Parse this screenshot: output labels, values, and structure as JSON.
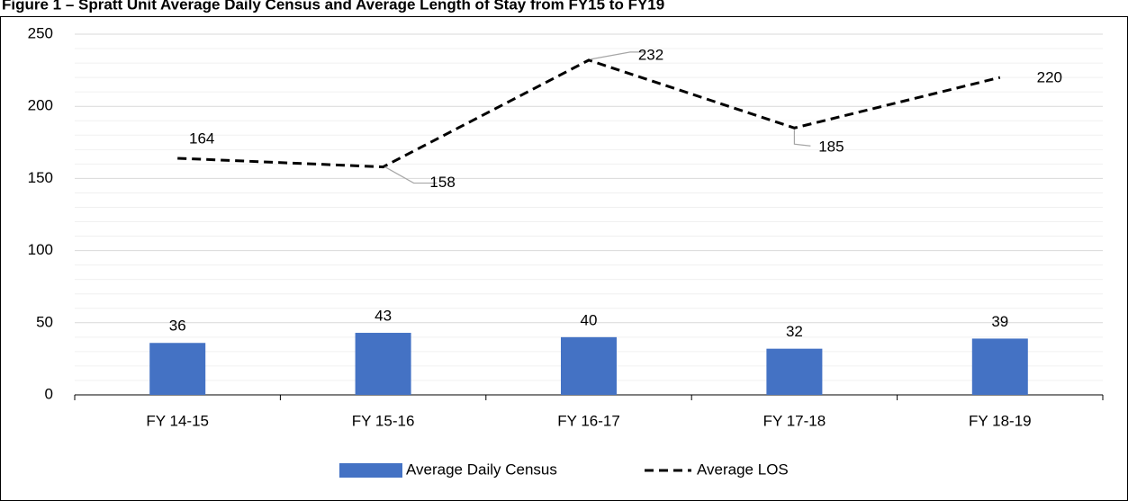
{
  "chart_data": {
    "type": "bar-line",
    "title": "Figure 1 – Spratt Unit Average Daily Census and Average Length of Stay from FY15 to FY19",
    "categories": [
      "FY 14-15",
      "FY 15-16",
      "FY 16-17",
      "FY 17-18",
      "FY 18-19"
    ],
    "series": [
      {
        "name": "Average Daily Census",
        "type": "bar",
        "color": "#4472c4",
        "values": [
          36,
          43,
          40,
          32,
          39
        ]
      },
      {
        "name": "Average LOS",
        "type": "line",
        "color": "#000000",
        "dashed": true,
        "values": [
          164,
          158,
          232,
          185,
          220
        ]
      }
    ],
    "ylim": [
      0,
      250
    ],
    "yticks": [
      0,
      50,
      100,
      150,
      200,
      250
    ],
    "yticks_minor": [
      10,
      20,
      30,
      40,
      60,
      70,
      80,
      90,
      110,
      120,
      130,
      140,
      160,
      170,
      180,
      190,
      210,
      220,
      230,
      240
    ],
    "grid": true,
    "legend": "bottom"
  }
}
